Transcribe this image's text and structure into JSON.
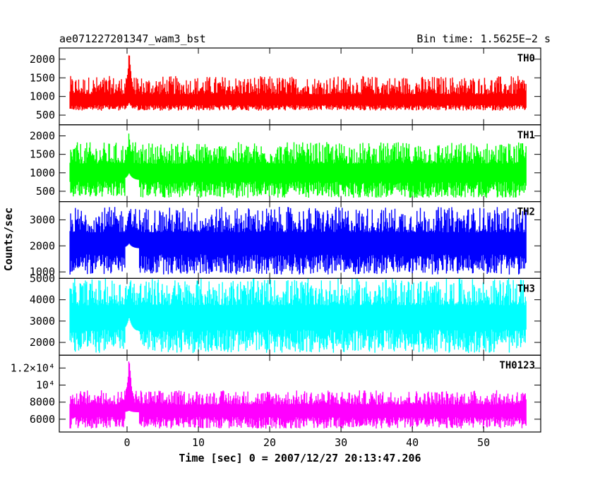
{
  "header": {
    "title": "ae071227201347_wam3_bst",
    "bin_time": "Bin time: 1.5625E−2 s"
  },
  "chart_data": {
    "type": "line",
    "title": "ae071227201347_wam3_bst",
    "xlabel": "Time [sec] 0 = 2007/12/27 20:13:47.206",
    "ylabel": "Counts/sec",
    "xlim": [
      -9.5,
      58
    ],
    "x_ticks": [
      0,
      10,
      20,
      30,
      40,
      50
    ],
    "x_tick_labels": [
      "0",
      "10",
      "20",
      "30",
      "40",
      "50"
    ],
    "data_range": [
      -8,
      56
    ],
    "bin_time": 0.015625,
    "grid": false,
    "panels": [
      {
        "name": "TH0",
        "color": "#ff0000",
        "ylim": [
          240,
          2300
        ],
        "y_ticks": [
          500,
          1000,
          1500,
          2000
        ],
        "y_tick_labels": [
          "500",
          "1000",
          "1500",
          "2000"
        ],
        "baseline": 850,
        "noise_low": 230,
        "noise_high": 700,
        "burst_peak": 2300,
        "burst_floor": 600
      },
      {
        "name": "TH1",
        "color": "#00ff00",
        "ylim": [
          220,
          2300
        ],
        "y_ticks": [
          500,
          1000,
          1500,
          2000
        ],
        "y_tick_labels": [
          "500",
          "1000",
          "1500",
          "2000"
        ],
        "baseline": 1000,
        "noise_low": 680,
        "noise_high": 830,
        "burst_peak": 2200,
        "burst_floor": 800
      },
      {
        "name": "TH2",
        "color": "#0000ff",
        "ylim": [
          750,
          3700
        ],
        "y_ticks": [
          1000,
          2000,
          3000
        ],
        "y_tick_labels": [
          "1000",
          "2000",
          "3000"
        ],
        "baseline": 2100,
        "noise_low": 1200,
        "noise_high": 1400,
        "burst_peak": 3700,
        "burst_floor": 1900
      },
      {
        "name": "TH3",
        "color": "#00ffff",
        "ylim": [
          1400,
          5000
        ],
        "y_ticks": [
          2000,
          3000,
          4000,
          5000
        ],
        "y_tick_labels": [
          "2000",
          "3000",
          "4000",
          "5000"
        ],
        "baseline": 3200,
        "noise_low": 1700,
        "noise_high": 1800,
        "burst_peak": 5000,
        "burst_floor": 2500
      },
      {
        "name": "TH0123",
        "color": "#ff00ff",
        "ylim": [
          4500,
          13500
        ],
        "y_ticks": [
          6000,
          8000,
          10000,
          12000
        ],
        "y_tick_labels": [
          "6000",
          "8000",
          "10⁴",
          "1.2×10⁴"
        ],
        "baseline": 7000,
        "noise_low": 2100,
        "noise_high": 2400,
        "burst_peak": 13500,
        "burst_floor": 6800
      }
    ]
  }
}
